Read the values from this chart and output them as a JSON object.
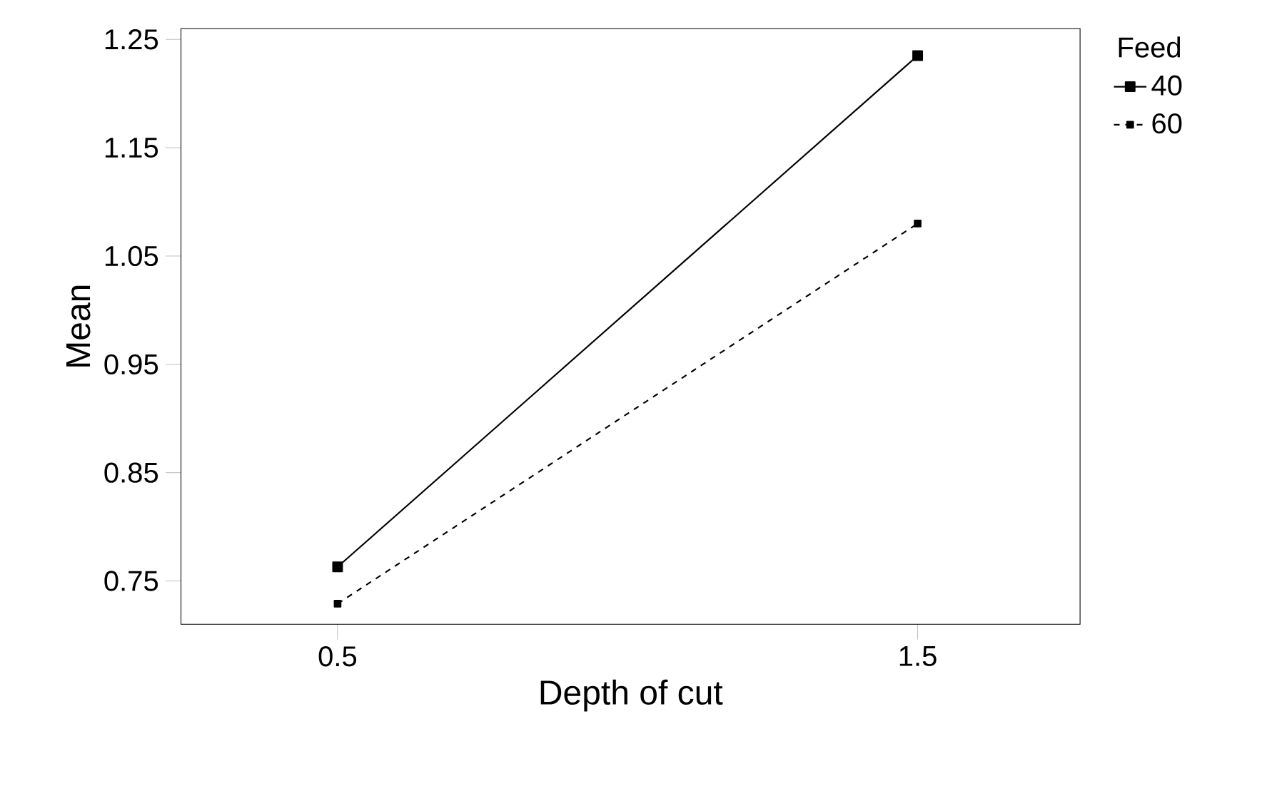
{
  "chart_data": {
    "type": "line",
    "xlabel": "Depth of cut",
    "ylabel": "Mean",
    "legend_title": "Feed",
    "legend": "top right",
    "x": [
      0.5,
      1.5
    ],
    "xlim": [
      0.23,
      1.78
    ],
    "xticks": [
      0.5,
      1.5
    ],
    "ylim": [
      0.71,
      1.26
    ],
    "yticks": [
      0.75,
      0.85,
      0.95,
      1.05,
      1.15,
      1.25
    ],
    "marker": "square",
    "series": [
      {
        "name": "40",
        "color": "#000000",
        "values": [
          0.763,
          1.235
        ],
        "line_style": "solid"
      },
      {
        "name": "60",
        "color": "#000000",
        "values": [
          0.729,
          1.08
        ],
        "line_style": "dashed"
      }
    ]
  }
}
